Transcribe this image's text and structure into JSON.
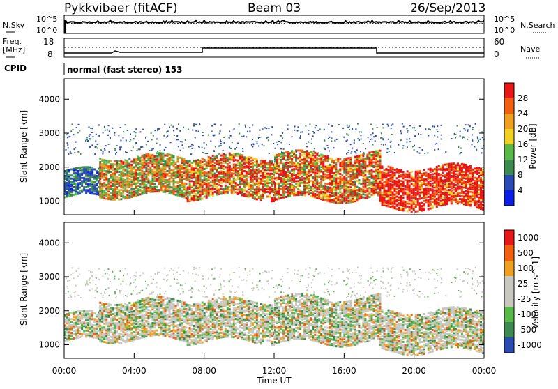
{
  "header": {
    "station": "Pykkvibaer (fitACF)",
    "beam": "Beam 03",
    "date": "26/Sep/2013"
  },
  "summary": {
    "nsky_label": "N.Sky",
    "nsearch_label": "N.Search",
    "count_ticks_left": [
      "10^5",
      "10^0"
    ],
    "count_ticks_right": [
      "10^5",
      "10^0"
    ],
    "freq_label": "Freq.",
    "freq_unit": "[MHz]",
    "freq_ticks": [
      "18",
      "8"
    ],
    "nave_label": "Nave",
    "nave_ticks": [
      "60",
      "0"
    ],
    "cpid_label": "CPID",
    "cpid_text": "normal (fast stereo) 153"
  },
  "colors": {
    "power_scale": [
      "#0a1ee6",
      "#2a4ab4",
      "#3c8a50",
      "#58b848",
      "#f0d020",
      "#f0a020",
      "#f06010",
      "#e81818"
    ],
    "velocity_scale": [
      "#e81818",
      "#f06010",
      "#f0a020",
      "#c8c8c0",
      "#c8c8c0",
      "#58b848",
      "#3c8a50",
      "#2a4ab4"
    ]
  },
  "chart_data": [
    {
      "type": "heatmap",
      "name": "power",
      "xlabel": "",
      "ylabel": "Slant Range [km]",
      "y_ticks": [
        "1000",
        "2000",
        "3000",
        "4000"
      ],
      "ylim": [
        600,
        4600
      ],
      "colorbar_label": "Power [dB]",
      "colorbar_ticks": [
        "4",
        "8",
        "12",
        "16",
        "20",
        "24",
        "28"
      ],
      "bands": [
        {
          "t0": 0.0,
          "t1": 2.0,
          "r0": 1100,
          "r1": 1900,
          "level": "green-blue"
        },
        {
          "t0": 2.0,
          "t1": 7.0,
          "r0": 1150,
          "r1": 2300,
          "level": "green-orange"
        },
        {
          "t0": 7.0,
          "t1": 12.0,
          "r0": 1100,
          "r1": 2300,
          "level": "orange-red"
        },
        {
          "t0": 12.0,
          "t1": 18.0,
          "r0": 1050,
          "r1": 2400,
          "level": "orange-red"
        },
        {
          "t0": 18.0,
          "t1": 24.0,
          "r0": 800,
          "r1": 2000,
          "level": "red"
        }
      ]
    },
    {
      "type": "heatmap",
      "name": "velocity",
      "xlabel": "Time UT",
      "ylabel": "Slant Range [km]",
      "y_ticks": [
        "1000",
        "2000",
        "3000",
        "4000"
      ],
      "ylim": [
        600,
        4600
      ],
      "colorbar_label": "Velocity [m s^-1]",
      "colorbar_ticks": [
        "1000",
        "500",
        "100",
        "25",
        "-25",
        "-100",
        "-500",
        "-1000"
      ],
      "x_ticks": [
        "00:00",
        "04:00",
        "08:00",
        "12:00",
        "16:00",
        "20:00",
        "00:00"
      ],
      "xlim": [
        0,
        24
      ]
    }
  ]
}
